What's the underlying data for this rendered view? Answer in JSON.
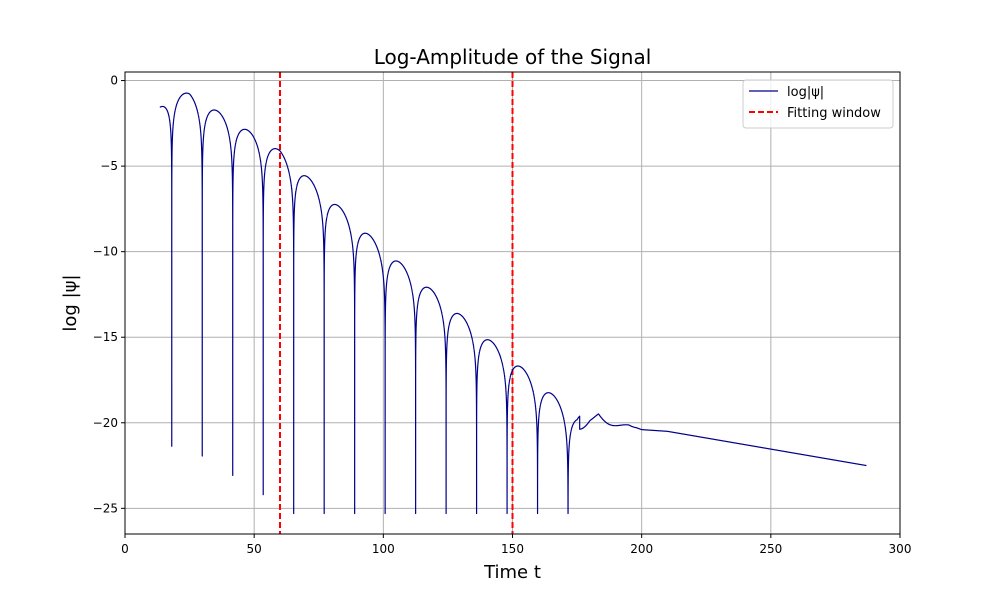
{
  "chart_data": {
    "type": "line",
    "title": "Log-Amplitude of the Signal",
    "xlabel": "Time t",
    "ylabel": "log |ψ|",
    "xlim": [
      0,
      300
    ],
    "ylim": [
      -26.5,
      0.5
    ],
    "xticks": [
      0,
      50,
      100,
      150,
      200,
      250,
      300
    ],
    "yticks": [
      0,
      -5,
      -10,
      -15,
      -20,
      -25
    ],
    "xtick_labels": [
      "0",
      "50",
      "100",
      "150",
      "200",
      "250",
      "300"
    ],
    "ytick_labels": [
      "0",
      "−5",
      "−10",
      "−15",
      "−20",
      "−25"
    ],
    "grid": true,
    "legend_position": "top-right",
    "series": [
      {
        "name": "log|ψ|",
        "color": "#00008b",
        "style": "solid",
        "signal_model": {
          "t_start": 13.5,
          "t_end": 287,
          "envelope_points": [
            [
              13.5,
              -1.5
            ],
            [
              18,
              -0.65
            ],
            [
              25,
              -0.75
            ],
            [
              60,
              -4.1
            ],
            [
              100,
              -9.8
            ],
            [
              150,
              -16.3
            ],
            [
              175,
              -19.6
            ],
            [
              180,
              -19.3
            ],
            [
              200,
              -20.4
            ],
            [
              210,
              -20.5
            ],
            [
              287,
              -22.5
            ]
          ],
          "oscillation_period": 11.8,
          "oscillation_phase_zero": 12.2,
          "oscillation_end": 198,
          "tail_ripple_start": 176
        }
      }
    ],
    "vertical_lines": [
      {
        "x": 60,
        "color": "#ff0000",
        "style": "dashed",
        "label": "Fitting window"
      },
      {
        "x": 150,
        "color": "#ff0000",
        "style": "dashed",
        "label": "Fitting window"
      }
    ]
  },
  "legend": {
    "entries": [
      {
        "label": "log|ψ|",
        "color": "#00008b",
        "style": "solid"
      },
      {
        "label": "Fitting window",
        "color": "#ff0000",
        "style": "dashed"
      }
    ]
  }
}
